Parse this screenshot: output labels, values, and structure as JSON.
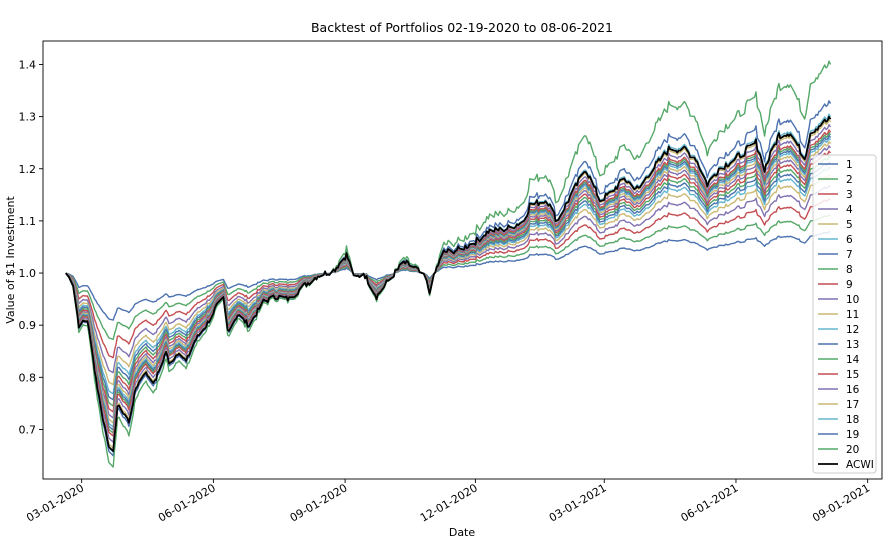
{
  "chart_data": {
    "type": "line",
    "title": "Backtest of Portfolios 02-19-2020 to 08-06-2021",
    "xlabel": "Date",
    "ylabel": "Value of $1 Investment",
    "x_start": "2020-02-19",
    "x_end": "2021-08-06",
    "xlim": [
      "2020-02-03",
      "2021-09-11"
    ],
    "ylim": [
      0.605,
      1.445
    ],
    "x_ticks": [
      "2020-03-01",
      "2020-06-01",
      "2020-09-01",
      "2020-12-01",
      "2021-03-01",
      "2021-06-01",
      "2021-09-01"
    ],
    "x_tick_labels": [
      "03-01-2020",
      "06-01-2020",
      "09-01-2020",
      "12-01-2020",
      "03-01-2021",
      "06-01-2021",
      "09-01-2021"
    ],
    "y_ticks": [
      0.7,
      0.8,
      0.9,
      1.0,
      1.1,
      1.2,
      1.3,
      1.4
    ],
    "y_tick_labels": [
      "0.7",
      "0.8",
      "0.9",
      "1.0",
      "1.1",
      "1.2",
      "1.3",
      "1.4"
    ],
    "grid": false,
    "legend_position": "lower-right",
    "palette": [
      "#4c72b0",
      "#55a868",
      "#c44e52",
      "#8172b2",
      "#ccb974",
      "#64b5cd"
    ],
    "acwi_color": "#000000",
    "acwi_profile": [
      [
        "2020-02-19",
        1.0
      ],
      [
        "2020-02-24",
        0.98
      ],
      [
        "2020-02-28",
        0.9
      ],
      [
        "2020-03-05",
        0.91
      ],
      [
        "2020-03-12",
        0.78
      ],
      [
        "2020-03-16",
        0.72
      ],
      [
        "2020-03-20",
        0.67
      ],
      [
        "2020-03-23",
        0.655
      ],
      [
        "2020-03-26",
        0.745
      ],
      [
        "2020-03-31",
        0.73
      ],
      [
        "2020-04-03",
        0.715
      ],
      [
        "2020-04-08",
        0.78
      ],
      [
        "2020-04-14",
        0.81
      ],
      [
        "2020-04-21",
        0.79
      ],
      [
        "2020-04-29",
        0.85
      ],
      [
        "2020-05-01",
        0.825
      ],
      [
        "2020-05-08",
        0.85
      ],
      [
        "2020-05-13",
        0.83
      ],
      [
        "2020-05-19",
        0.87
      ],
      [
        "2020-05-27",
        0.9
      ],
      [
        "2020-06-03",
        0.935
      ],
      [
        "2020-06-08",
        0.95
      ],
      [
        "2020-06-11",
        0.89
      ],
      [
        "2020-06-18",
        0.92
      ],
      [
        "2020-06-26",
        0.9
      ],
      [
        "2020-07-06",
        0.945
      ],
      [
        "2020-07-15",
        0.955
      ],
      [
        "2020-07-24",
        0.95
      ],
      [
        "2020-08-03",
        0.975
      ],
      [
        "2020-08-13",
        0.995
      ],
      [
        "2020-08-24",
        1.005
      ],
      [
        "2020-09-02",
        1.035
      ],
      [
        "2020-09-08",
        0.99
      ],
      [
        "2020-09-14",
        1.0
      ],
      [
        "2020-09-23",
        0.955
      ],
      [
        "2020-10-01",
        0.985
      ],
      [
        "2020-10-12",
        1.02
      ],
      [
        "2020-10-20",
        1.01
      ],
      [
        "2020-10-27",
        0.99
      ],
      [
        "2020-10-30",
        0.965
      ],
      [
        "2020-11-04",
        1.01
      ],
      [
        "2020-11-09",
        1.04
      ],
      [
        "2020-11-20",
        1.045
      ],
      [
        "2020-12-01",
        1.06
      ],
      [
        "2020-12-10",
        1.08
      ],
      [
        "2020-12-23",
        1.085
      ],
      [
        "2021-01-04",
        1.1
      ],
      [
        "2021-01-08",
        1.13
      ],
      [
        "2021-01-20",
        1.14
      ],
      [
        "2021-01-27",
        1.1
      ],
      [
        "2021-02-01",
        1.125
      ],
      [
        "2021-02-16",
        1.2
      ],
      [
        "2021-02-26",
        1.14
      ],
      [
        "2021-03-04",
        1.15
      ],
      [
        "2021-03-15",
        1.18
      ],
      [
        "2021-03-25",
        1.16
      ],
      [
        "2021-04-01",
        1.19
      ],
      [
        "2021-04-16",
        1.24
      ],
      [
        "2021-04-27",
        1.235
      ],
      [
        "2021-05-04",
        1.22
      ],
      [
        "2021-05-12",
        1.17
      ],
      [
        "2021-05-20",
        1.2
      ],
      [
        "2021-06-01",
        1.22
      ],
      [
        "2021-06-15",
        1.25
      ],
      [
        "2021-06-21",
        1.2
      ],
      [
        "2021-07-01",
        1.265
      ],
      [
        "2021-07-09",
        1.27
      ],
      [
        "2021-07-19",
        1.22
      ],
      [
        "2021-07-23",
        1.27
      ],
      [
        "2021-07-30",
        1.285
      ],
      [
        "2021-08-06",
        1.295
      ]
    ],
    "series": [
      {
        "name": "1",
        "color": "#4c72b0",
        "final": 1.078
      },
      {
        "name": "2",
        "color": "#55a868",
        "final": 1.11
      },
      {
        "name": "3",
        "color": "#c44e52",
        "final": 1.14
      },
      {
        "name": "4",
        "color": "#8172b2",
        "final": 1.165
      },
      {
        "name": "5",
        "color": "#ccb974",
        "final": 1.185
      },
      {
        "name": "6",
        "color": "#64b5cd",
        "final": 1.2
      },
      {
        "name": "7",
        "color": "#4c72b0",
        "final": 1.21
      },
      {
        "name": "8",
        "color": "#55a868",
        "final": 1.22
      },
      {
        "name": "9",
        "color": "#c44e52",
        "final": 1.23
      },
      {
        "name": "10",
        "color": "#8172b2",
        "final": 1.24
      },
      {
        "name": "11",
        "color": "#ccb974",
        "final": 1.248
      },
      {
        "name": "12",
        "color": "#64b5cd",
        "final": 1.255
      },
      {
        "name": "13",
        "color": "#4c72b0",
        "final": 1.26
      },
      {
        "name": "14",
        "color": "#55a868",
        "final": 1.265
      },
      {
        "name": "15",
        "color": "#c44e52",
        "final": 1.27
      },
      {
        "name": "16",
        "color": "#8172b2",
        "final": 1.28
      },
      {
        "name": "17",
        "color": "#ccb974",
        "final": 1.29
      },
      {
        "name": "18",
        "color": "#64b5cd",
        "final": 1.3
      },
      {
        "name": "19",
        "color": "#4c72b0",
        "final": 1.325
      },
      {
        "name": "20",
        "color": "#55a868",
        "final": 1.4
      },
      {
        "name": "ACWI",
        "color": "#000000",
        "final": 1.295
      }
    ]
  }
}
